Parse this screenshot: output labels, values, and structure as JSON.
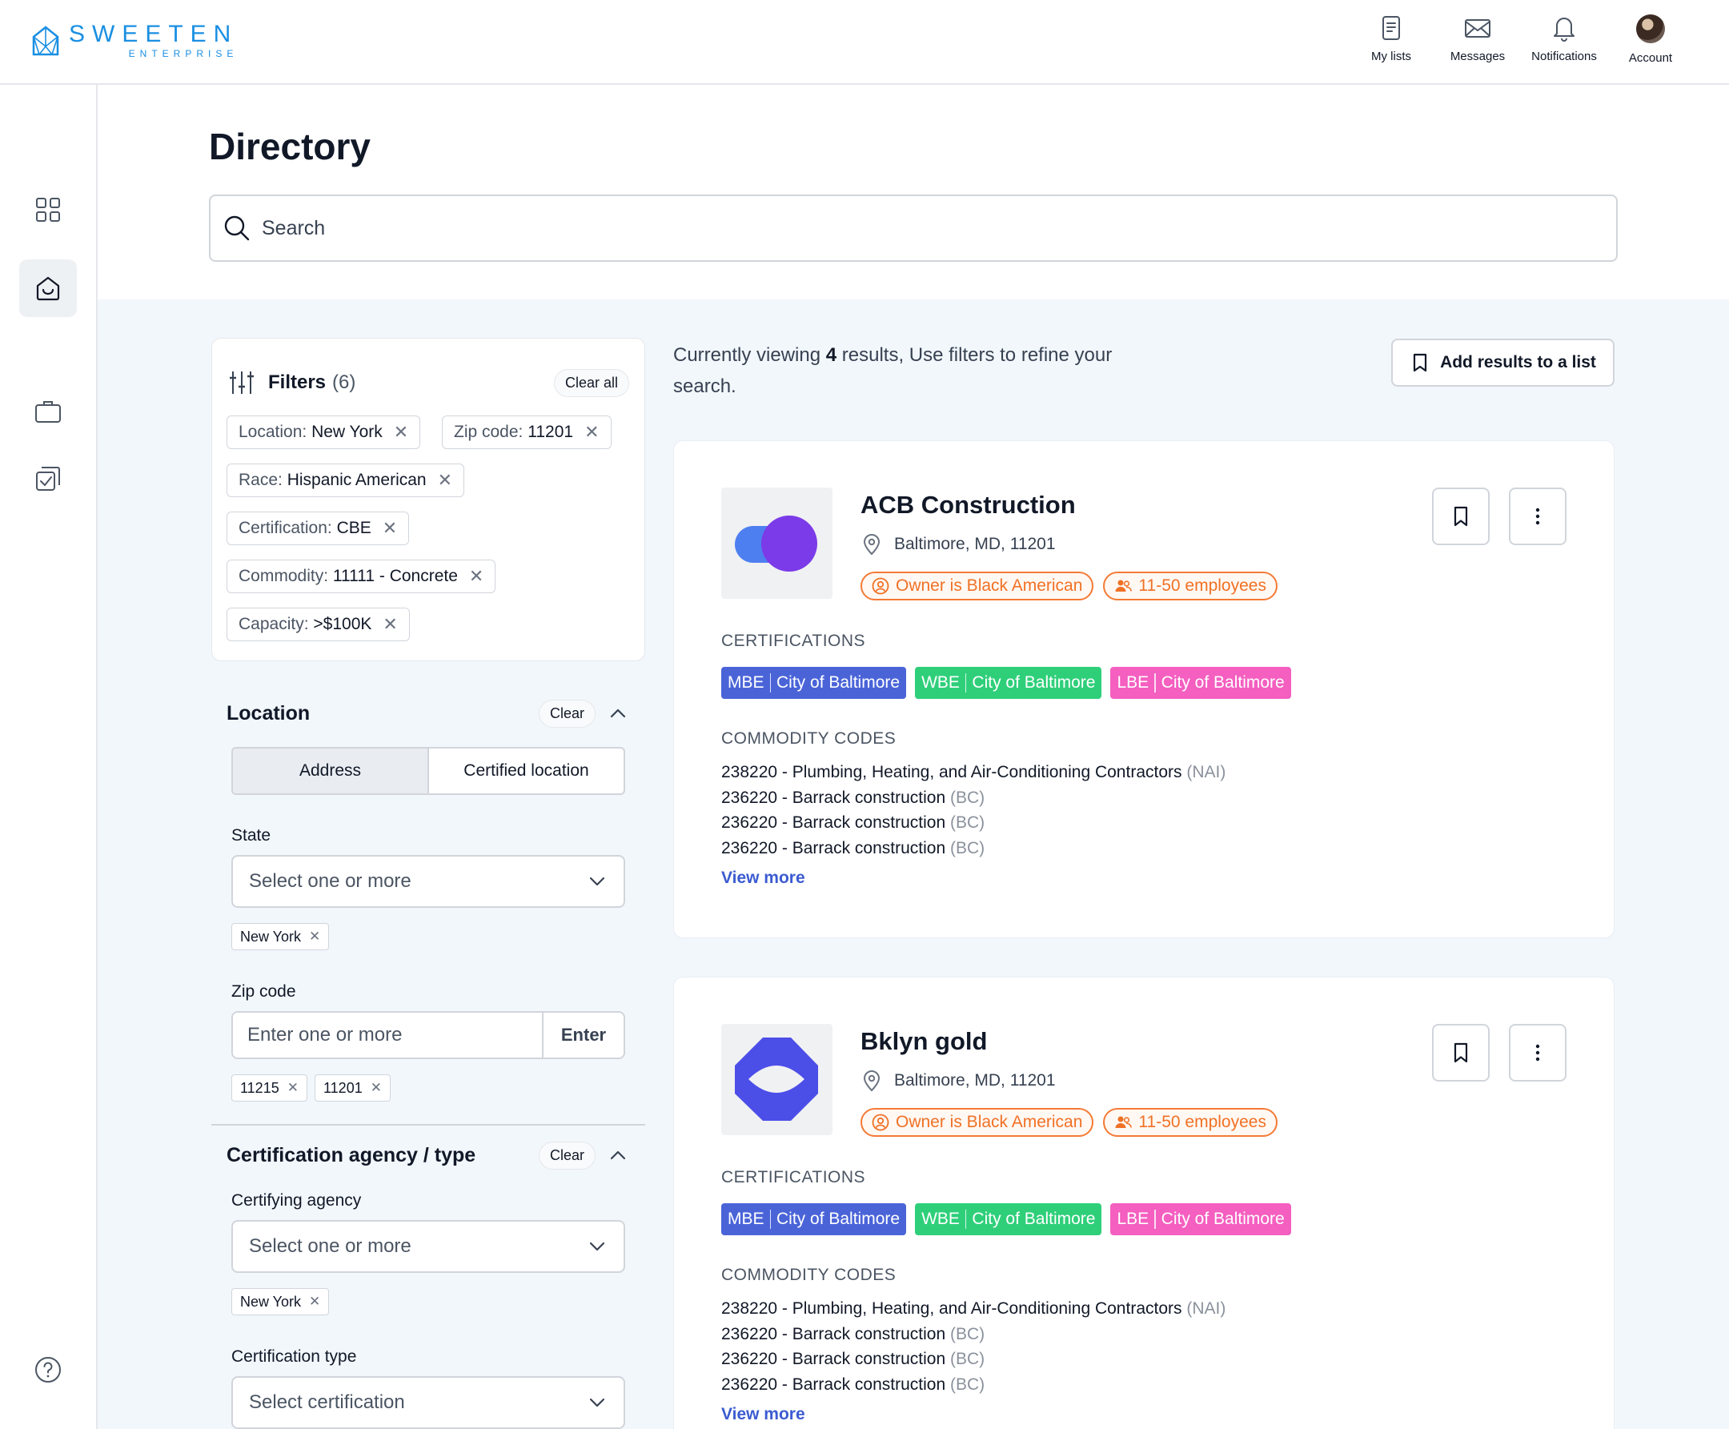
{
  "brand": {
    "name": "SWEETEN",
    "sub": "ENTERPRISE",
    "color": "#1a8fe3"
  },
  "top_nav": [
    {
      "label": "My lists",
      "icon": "list-icon"
    },
    {
      "label": "Messages",
      "icon": "mail-icon"
    },
    {
      "label": "Notifications",
      "icon": "bell-icon"
    },
    {
      "label": "Account",
      "icon": "avatar"
    }
  ],
  "side_nav": [
    {
      "icon": "grid-icon",
      "active": false
    },
    {
      "icon": "layers-icon",
      "active": false
    },
    {
      "icon": "home-icon",
      "active": true
    },
    {
      "icon": "briefcase-icon",
      "active": false
    },
    {
      "icon": "checklist-icon",
      "active": false
    },
    {
      "icon": "help-icon",
      "active": false
    }
  ],
  "page": {
    "title": "Directory",
    "search_placeholder": "Search"
  },
  "filters": {
    "title": "Filters",
    "count": "(6)",
    "clear_all": "Clear all",
    "chips": [
      {
        "key": "Location:",
        "value": "New York"
      },
      {
        "key": "Zip code:",
        "value": "11201"
      },
      {
        "key": "Race:",
        "value": "Hispanic American"
      },
      {
        "key": "Certification:",
        "value": "CBE"
      },
      {
        "key": "Commodity:",
        "value": "11111 - Concrete"
      },
      {
        "key": "Capacity:",
        "value": ">$100K"
      }
    ]
  },
  "location_section": {
    "title": "Location",
    "clear": "Clear",
    "segments": [
      "Address",
      "Certified location"
    ],
    "active_segment": "Address",
    "state_label": "State",
    "state_placeholder": "Select one or more",
    "state_chips": [
      "New York"
    ],
    "zip_label": "Zip code",
    "zip_placeholder": "Enter one or more",
    "zip_enter": "Enter",
    "zip_chips": [
      "11215",
      "11201"
    ]
  },
  "cert_section": {
    "title": "Certification agency / type",
    "clear": "Clear",
    "agency_label": "Certifying agency",
    "agency_placeholder": "Select one or more",
    "agency_chips": [
      "New York"
    ],
    "type_label": "Certification type",
    "type_placeholder": "Select certification"
  },
  "results": {
    "prefix": "Currently viewing ",
    "count": "4",
    "suffix": " results, Use filters to refine your search.",
    "add_to_list": "Add results to a list"
  },
  "companies": [
    {
      "name": "ACB Construction",
      "location": "Baltimore, MD, 11201",
      "logo": "overlapping-circles",
      "tags": [
        "Owner is Black American",
        "11-50 employees"
      ],
      "certifications_caption": "CERTIFICATIONS",
      "certifications": [
        {
          "type": "MBE",
          "agency": "City of Baltimore",
          "color": "#4a64d8"
        },
        {
          "type": "WBE",
          "agency": "City of Baltimore",
          "color": "#2fcf7a"
        },
        {
          "type": "LBE",
          "agency": "City of Baltimore",
          "color": "#f45fc0"
        }
      ],
      "codes_caption": "COMMODITY CODES",
      "codes": [
        {
          "text": "238220 - Plumbing, Heating, and Air-Conditioning Contractors",
          "src": "(NAI)"
        },
        {
          "text": "236220 - Barrack construction",
          "src": "(BC)"
        },
        {
          "text": "236220 - Barrack construction",
          "src": "(BC)"
        },
        {
          "text": "236220 - Barrack construction",
          "src": "(BC)"
        }
      ],
      "view_more": "View more"
    },
    {
      "name": "Bklyn gold",
      "location": "Baltimore, MD, 11201",
      "logo": "octagon-eye",
      "tags": [
        "Owner is Black American",
        "11-50 employees"
      ],
      "certifications_caption": "CERTIFICATIONS",
      "certifications": [
        {
          "type": "MBE",
          "agency": "City of Baltimore",
          "color": "#4a64d8"
        },
        {
          "type": "WBE",
          "agency": "City of Baltimore",
          "color": "#2fcf7a"
        },
        {
          "type": "LBE",
          "agency": "City of Baltimore",
          "color": "#f45fc0"
        }
      ],
      "codes_caption": "COMMODITY CODES",
      "codes": [
        {
          "text": "238220 - Plumbing, Heating, and Air-Conditioning Contractors",
          "src": "(NAI)"
        },
        {
          "text": "236220 - Barrack construction",
          "src": "(BC)"
        },
        {
          "text": "236220 - Barrack construction",
          "src": "(BC)"
        },
        {
          "text": "236220 - Barrack construction",
          "src": "(BC)"
        }
      ],
      "view_more": "View more"
    }
  ]
}
